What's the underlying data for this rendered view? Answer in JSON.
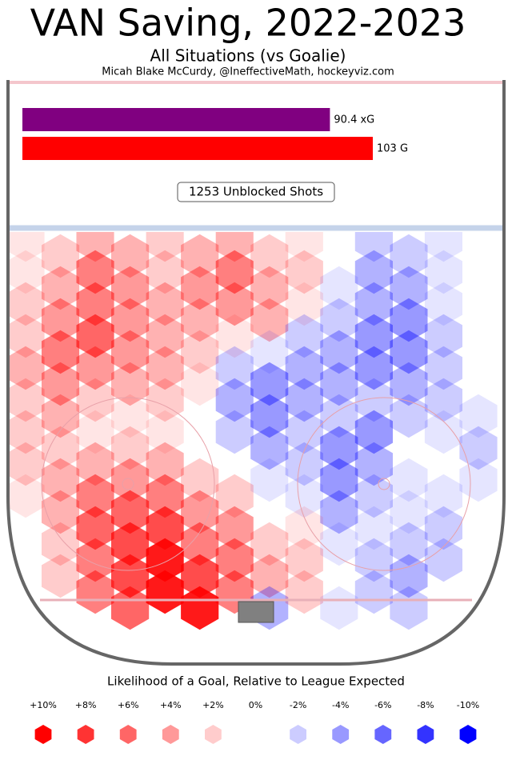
{
  "chart_data": {
    "type": "hexmap",
    "title": "VAN Saving, 2022-2023",
    "subtitle": "All Situations (vs Goalie)",
    "credit": "Micah Blake McCurdy, @IneffectiveMath, hockeyviz.com",
    "bars": {
      "values": [
        90.4,
        103
      ],
      "value_labels": [
        "90.4 xG",
        "103 G"
      ],
      "colors": [
        "#800080",
        "#ff0000"
      ]
    },
    "annotation": "1253 Unblocked Shots",
    "legend_title": "Likelihood of a Goal, Relative to League Expected",
    "legend": [
      {
        "value": 10,
        "label": "+10%"
      },
      {
        "value": 8,
        "label": "+8%"
      },
      {
        "value": 6,
        "label": "+6%"
      },
      {
        "value": 4,
        "label": "+4%"
      },
      {
        "value": 2,
        "label": "+2%"
      },
      {
        "value": 0,
        "label": "0%"
      },
      {
        "value": -2,
        "label": "-2%"
      },
      {
        "value": -4,
        "label": "-4%"
      },
      {
        "value": -6,
        "label": "-6%"
      },
      {
        "value": -8,
        "label": "-8%"
      },
      {
        "value": -10,
        "label": "-10%"
      }
    ],
    "grid": [
      [
        1,
        2,
        3,
        3,
        2,
        3,
        3,
        2,
        1,
        0,
        -2,
        -2,
        -1,
        0
      ],
      [
        1,
        3,
        5,
        4,
        2,
        4,
        5,
        3,
        2,
        -1,
        -3,
        -3,
        -1,
        0
      ],
      [
        2,
        4,
        5,
        4,
        3,
        3,
        4,
        3,
        1,
        -2,
        -3,
        -4,
        -1,
        0
      ],
      [
        2,
        5,
        6,
        4,
        3,
        2,
        1,
        -1,
        -2,
        -3,
        -4,
        -4,
        -2,
        0
      ],
      [
        3,
        4,
        4,
        3,
        3,
        1,
        -2,
        -4,
        -3,
        -3,
        -4,
        -3,
        -2,
        0
      ],
      [
        2,
        3,
        2,
        1,
        2,
        0,
        -3,
        -4,
        -3,
        -2,
        -2,
        -2,
        -2,
        -1
      ],
      [
        2,
        2,
        1,
        2,
        1,
        0,
        -2,
        -3,
        -2,
        -4,
        -4,
        0,
        -1,
        -2
      ],
      [
        2,
        3,
        3,
        4,
        3,
        2,
        0,
        -1,
        -2,
        -4,
        -3,
        -1,
        0,
        -1
      ],
      [
        1,
        3,
        5,
        6,
        5,
        4,
        2,
        0,
        -1,
        -3,
        -2,
        -1,
        -1,
        0
      ],
      [
        0,
        2,
        6,
        7,
        7,
        5,
        4,
        2,
        1,
        -1,
        -1,
        -2,
        -2,
        0
      ],
      [
        0,
        2,
        5,
        7,
        9,
        7,
        5,
        3,
        2,
        0,
        -2,
        -3,
        -2,
        0
      ],
      [
        0,
        0,
        5,
        6,
        9,
        9,
        5,
        -3,
        2,
        -1,
        -2,
        -2,
        0,
        0
      ]
    ]
  }
}
